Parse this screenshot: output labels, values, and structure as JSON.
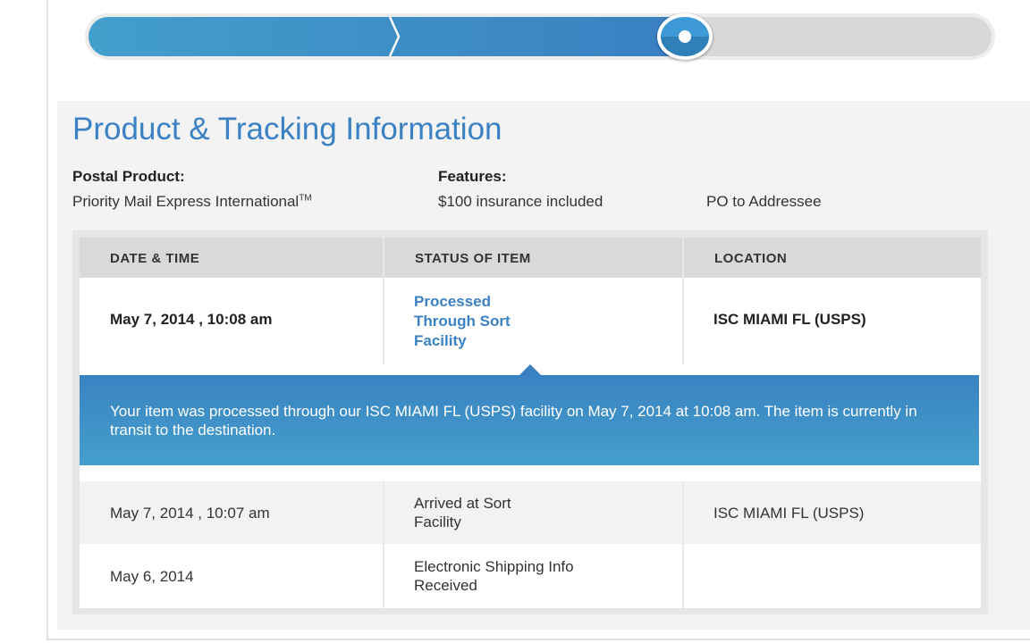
{
  "progress": {
    "percent": 66,
    "colors": {
      "fill_start": "#439fcc",
      "fill_end": "#3a7fc1",
      "track": "#d8d8d8"
    }
  },
  "section": {
    "title": "Product & Tracking Information",
    "postal_product_label": "Postal Product:",
    "postal_product_value": "Priority Mail Express International",
    "trademark": "TM",
    "features_label": "Features:",
    "features": [
      "$100 insurance included",
      "PO to Addressee"
    ]
  },
  "table": {
    "headers": [
      "DATE & TIME",
      "STATUS OF ITEM",
      "LOCATION"
    ],
    "rows": [
      {
        "date": "May 7, 2014 , 10:08 am",
        "status": "Processed Through Sort Facility",
        "location": "ISC MIAMI FL (USPS)"
      },
      {
        "date": "May 7, 2014 , 10:07 am",
        "status": "Arrived at Sort Facility",
        "location": "ISC MIAMI FL (USPS)"
      },
      {
        "date": "May 6, 2014",
        "status": "Electronic Shipping Info Received",
        "location": ""
      }
    ],
    "detail": "Your item was processed through our ISC MIAMI FL (USPS) facility on May 7, 2014 at 10:08 am. The item is currently in transit to the destination."
  }
}
